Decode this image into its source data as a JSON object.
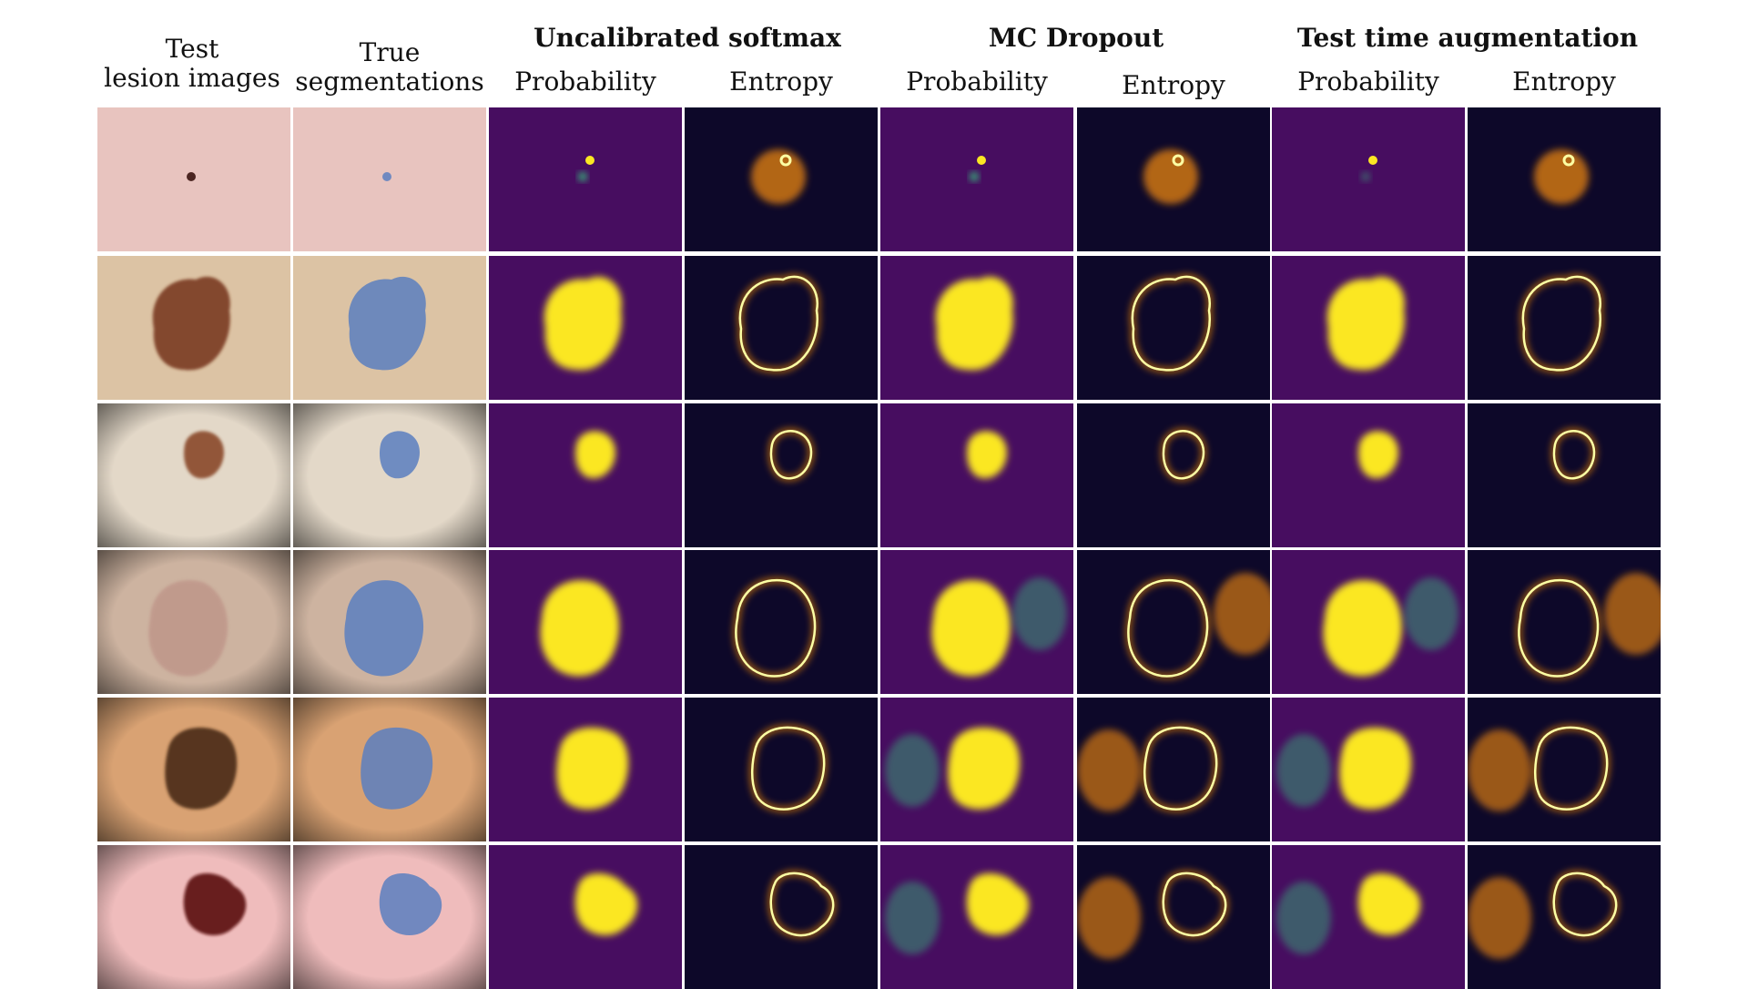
{
  "headers": {
    "test_images": [
      "Test",
      "lesion images"
    ],
    "true_segmentations": [
      "True",
      "segmentations"
    ],
    "groups": [
      "Uncalibrated softmax",
      "MC Dropout",
      "Test time augmentation"
    ],
    "sub_columns": [
      "Probability",
      "Entropy"
    ]
  },
  "grid": {
    "rows": 6,
    "columns": 8
  },
  "colors": {
    "probability_background": "#470d60",
    "probability_high": "#fbe723",
    "probability_mid": "#35b779",
    "entropy_background": "#0d0829",
    "entropy_high": "#fcffa4",
    "entropy_mid": "#f98e09",
    "segmentation_overlay": "#5b7fc0",
    "skin_tone": "#e9c9b8"
  }
}
